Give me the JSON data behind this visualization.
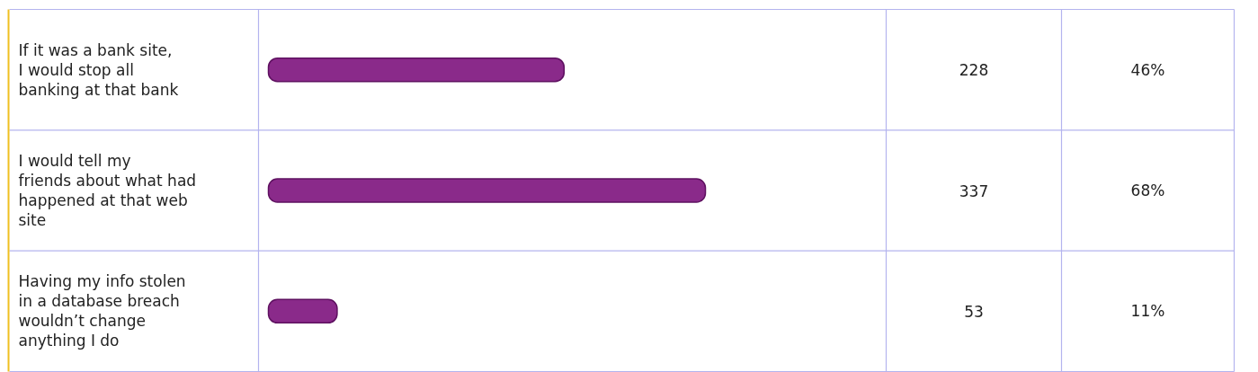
{
  "chart_data": {
    "type": "bar",
    "orientation": "horizontal",
    "categories": [
      "If it was a bank site, I would stop all banking at that bank",
      "I would tell my friends about what had happened at that web site",
      "Having my info stolen in a database breach wouldn’t change anything I do"
    ],
    "values": [
      228,
      337,
      53
    ],
    "color": "#8a2a8a",
    "data_labels": true,
    "annotations": [
      "46%",
      "68%",
      "11%"
    ]
  }
}
